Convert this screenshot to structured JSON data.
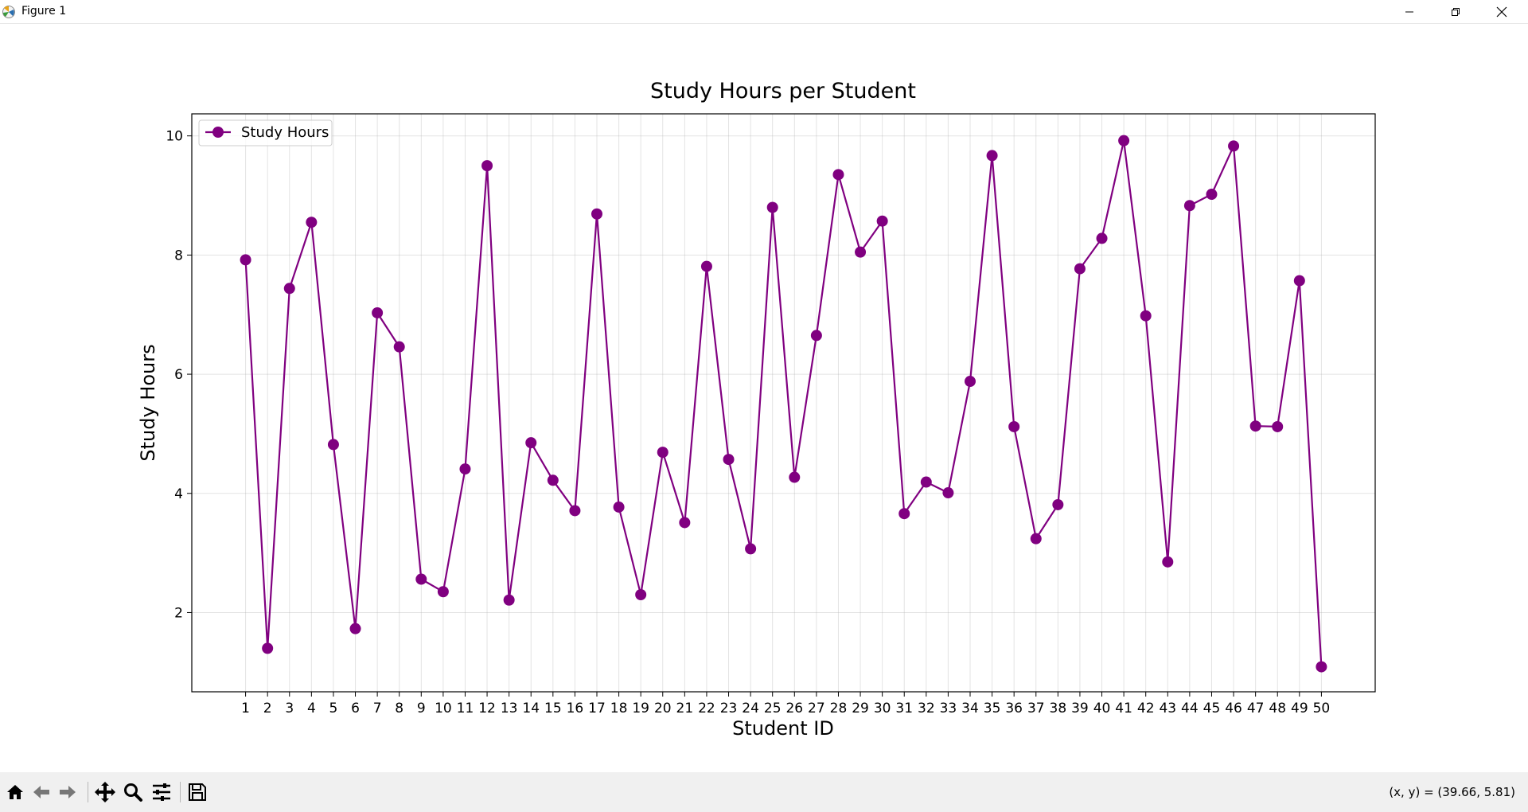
{
  "window": {
    "title": "Figure 1",
    "controls": [
      "minimize-icon",
      "restore-icon",
      "close-icon"
    ]
  },
  "toolbar": {
    "buttons": [
      "home-icon",
      "back-icon",
      "forward-icon",
      "pan-icon",
      "zoom-icon",
      "configure-subplots-icon",
      "save-icon"
    ],
    "coords_text": "(x, y) = (39.66, 5.81)"
  },
  "chart_data": {
    "type": "line",
    "title": "Study Hours per Student",
    "xlabel": "Student ID",
    "ylabel": "Study Hours",
    "x": [
      1,
      2,
      3,
      4,
      5,
      6,
      7,
      8,
      9,
      10,
      11,
      12,
      13,
      14,
      15,
      16,
      17,
      18,
      19,
      20,
      21,
      22,
      23,
      24,
      25,
      26,
      27,
      28,
      29,
      30,
      31,
      32,
      33,
      34,
      35,
      36,
      37,
      38,
      39,
      40,
      41,
      42,
      43,
      44,
      45,
      46,
      47,
      48,
      49,
      50
    ],
    "series": [
      {
        "name": "Study Hours",
        "color": "#800080",
        "marker": "circle",
        "values": [
          7.92,
          1.4,
          7.44,
          8.55,
          4.82,
          1.73,
          7.03,
          6.46,
          2.56,
          2.35,
          4.41,
          9.5,
          2.21,
          4.85,
          4.22,
          3.71,
          8.69,
          3.77,
          2.3,
          4.69,
          3.51,
          7.81,
          4.57,
          3.07,
          8.8,
          4.27,
          6.65,
          9.35,
          8.05,
          8.57,
          3.66,
          4.19,
          4.01,
          5.88,
          9.67,
          5.12,
          3.24,
          3.81,
          7.77,
          8.28,
          9.92,
          6.98,
          2.85,
          8.83,
          9.02,
          9.83,
          5.13,
          5.12,
          7.57,
          1.09
        ]
      }
    ],
    "xlim": [
      -1.45,
      52.45
    ],
    "ylim": [
      0.67,
      10.37
    ],
    "yticks": [
      2,
      4,
      6,
      8,
      10
    ],
    "xticks": [
      1,
      2,
      3,
      4,
      5,
      6,
      7,
      8,
      9,
      10,
      11,
      12,
      13,
      14,
      15,
      16,
      17,
      18,
      19,
      20,
      21,
      22,
      23,
      24,
      25,
      26,
      27,
      28,
      29,
      30,
      31,
      32,
      33,
      34,
      35,
      36,
      37,
      38,
      39,
      40,
      41,
      42,
      43,
      44,
      45,
      46,
      47,
      48,
      49,
      50
    ],
    "grid": true,
    "legend_position": "top-left"
  }
}
